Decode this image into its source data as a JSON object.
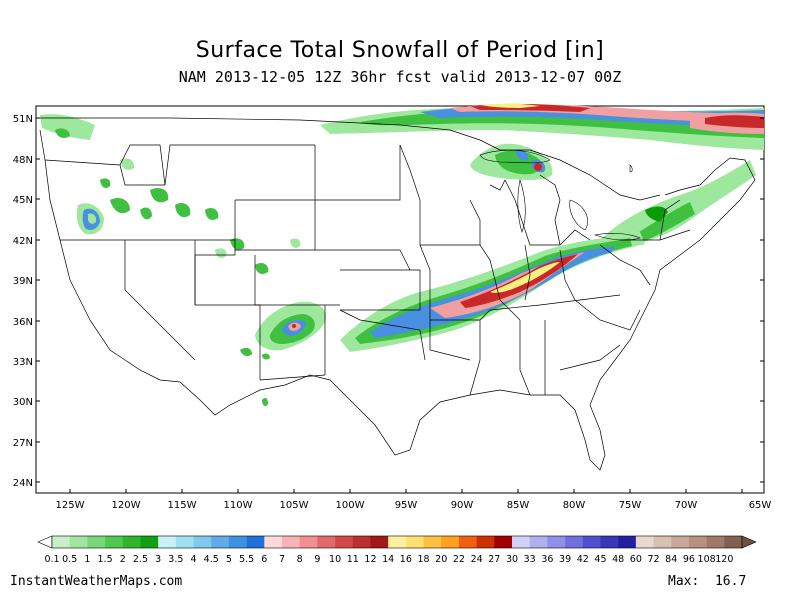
{
  "header": {
    "title": "Surface Total Snowfall of Period [in]",
    "subtitle": "NAM 2013-12-05 12Z 36hr fcst valid 2013-12-07 00Z"
  },
  "map": {
    "lat_labels": [
      "51N",
      "48N",
      "45N",
      "42N",
      "39N",
      "36N",
      "33N",
      "30N",
      "27N",
      "24N"
    ],
    "lon_labels": [
      "125W",
      "120W",
      "115W",
      "110W",
      "105W",
      "100W",
      "95W",
      "90W",
      "85W",
      "80W",
      "75W",
      "70W",
      "65W"
    ]
  },
  "legend": {
    "labels": [
      "0.1",
      "0.5",
      "1",
      "1.5",
      "2",
      "2.5",
      "3",
      "3.5",
      "4",
      "4.5",
      "5",
      "5.5",
      "6",
      "7",
      "8",
      "9",
      "10",
      "11",
      "12",
      "14",
      "16",
      "18",
      "20",
      "22",
      "24",
      "27",
      "30",
      "33",
      "36",
      "39",
      "42",
      "45",
      "48",
      "60",
      "72",
      "84",
      "96",
      "108",
      "120"
    ],
    "colors": [
      "#c8f0c8",
      "#a0e6a0",
      "#78d878",
      "#50c850",
      "#30b430",
      "#10a010",
      "#c8f0f8",
      "#a0e0f0",
      "#80c8ec",
      "#60aae8",
      "#4090e0",
      "#2070d8",
      "#ffd8d8",
      "#f8b4b4",
      "#f09090",
      "#e06a6a",
      "#d04848",
      "#b83030",
      "#a01818",
      "#fff0a0",
      "#ffe070",
      "#ffc040",
      "#ffa020",
      "#f06010",
      "#d03000",
      "#a00000",
      "#d0d0f8",
      "#b0b0f0",
      "#9090e8",
      "#7070e0",
      "#5050d0",
      "#3838b8",
      "#2020a0",
      "#e8d8d0",
      "#d8c0b0",
      "#c8a898",
      "#b89080",
      "#a07868",
      "#806050"
    ]
  },
  "footer": {
    "credit": "InstantWeatherMaps.com",
    "max_label": "Max:",
    "max_value": "16.7"
  },
  "colors": {
    "green_light": "#9ee89e",
    "green": "#40c040",
    "green_dark": "#0a9a0a",
    "blue": "#4a90e0",
    "pink": "#f0a0a0",
    "red": "#c82828",
    "yellow": "#f8f080"
  }
}
